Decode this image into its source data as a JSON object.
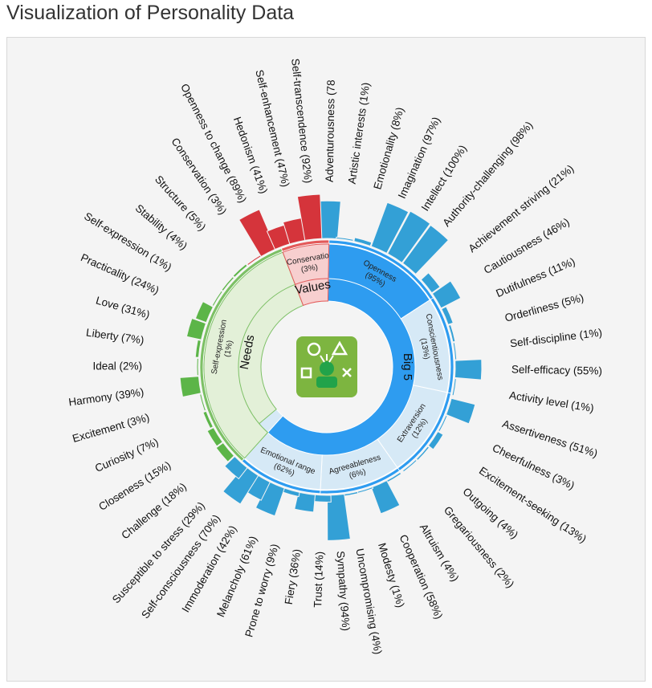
{
  "page": {
    "title": "Visualization of Personality Data"
  },
  "colors": {
    "big5_bar": "#33a0d6",
    "big5_main": "#2e9cf0",
    "big5_light": "#d6e9f6",
    "values_bar": "#d5343b",
    "values_main": "#e35a5a",
    "values_light": "#f7cfcf",
    "needs_bar": "#5cb548",
    "needs_main": "#7dc066",
    "needs_light": "#e3f0d8",
    "track": "#dce7f1",
    "badge": "#7db540"
  },
  "chart_data": {
    "type": "sunburst",
    "title": "Visualization of Personality Data",
    "center_icon": "personality-badge-icon",
    "top_level": [
      {
        "name": "Big 5",
        "color_key": "big5",
        "start_deg": 1,
        "end_deg": 222
      },
      {
        "name": "Needs",
        "color_key": "needs",
        "start_deg": 222,
        "end_deg": 339
      },
      {
        "name": "Values",
        "color_key": "values",
        "start_deg": 339,
        "end_deg": 361
      }
    ],
    "big5_inner": {
      "label": "Openness",
      "value_label": "(95%)",
      "start_deg": 1,
      "fill_end_deg": 302,
      "end_deg": 222
    },
    "needs_inner": {
      "label": "Self-expression",
      "value_label": "(1%)",
      "start_deg": 222,
      "end_deg": 339
    },
    "values_inner": {
      "label": "Conservatio",
      "value_label": "(3%)",
      "start_deg": 339,
      "end_deg": 361
    },
    "second_level": [
      {
        "name": "Openness",
        "pct": "(95%)",
        "start_deg": 1,
        "end_deg": 57,
        "color_key": "big5_main",
        "lines": [
          "Openness",
          "(95%)"
        ]
      },
      {
        "name": "Conscientiousness",
        "pct": "(13%)",
        "start_deg": 57,
        "end_deg": 102,
        "color_key": "big5_light",
        "lines": [
          "Conscientiousness",
          "(13%)"
        ]
      },
      {
        "name": "Extraversion",
        "pct": "(12%)",
        "start_deg": 102,
        "end_deg": 145,
        "color_key": "big5_light",
        "lines": [
          "Extraversion",
          "(12%)"
        ]
      },
      {
        "name": "Agreeableness",
        "pct": "(6%)",
        "start_deg": 145,
        "end_deg": 183,
        "color_key": "big5_light",
        "lines": [
          "Agreeableness",
          "(6%)"
        ]
      },
      {
        "name": "Emotional range",
        "pct": "(62%)",
        "start_deg": 183,
        "end_deg": 222,
        "color_key": "big5_light",
        "lines": [
          "Emotional range",
          "(62%)"
        ]
      },
      {
        "name": "Self-expression",
        "pct": "(1%)",
        "start_deg": 222,
        "end_deg": 339,
        "color_key": "needs_light",
        "lines": [
          "Self-expression",
          "(1%)"
        ]
      },
      {
        "name": "Conservatio",
        "pct": "(3%)",
        "start_deg": 339,
        "end_deg": 361,
        "color_key": "values_light",
        "lines": [
          "Conservatio",
          "(3%)"
        ]
      }
    ],
    "facets": [
      {
        "label": "Adventurousness (78",
        "value": 78,
        "angle": 1,
        "group": "big5",
        "side": "right"
      },
      {
        "label": "Artistic interests (1%)",
        "value": 1,
        "angle": 8,
        "group": "big5",
        "side": "right"
      },
      {
        "label": "Emotionality (8%)",
        "value": 8,
        "angle": 16,
        "group": "big5",
        "side": "right"
      },
      {
        "label": "Imagination (97%)",
        "value": 97,
        "angle": 24,
        "group": "big5",
        "side": "right"
      },
      {
        "label": "Intellect (100%)",
        "value": 100,
        "angle": 32,
        "group": "big5",
        "side": "right"
      },
      {
        "label": "Authority-challenging (98%)",
        "value": 98,
        "angle": 40,
        "group": "big5",
        "side": "right"
      },
      {
        "label": "Achievement striving (21%)",
        "value": 21,
        "angle": 51,
        "group": "big5",
        "side": "right"
      },
      {
        "label": "Cautiousness (46%)",
        "value": 46,
        "angle": 59,
        "group": "big5",
        "side": "right"
      },
      {
        "label": "Dutifulness (11%)",
        "value": 11,
        "angle": 67,
        "group": "big5",
        "side": "right"
      },
      {
        "label": "Orderliness (5%)",
        "value": 5,
        "angle": 75,
        "group": "big5",
        "side": "right"
      },
      {
        "label": "Self-discipline (1%)",
        "value": 1,
        "angle": 83,
        "group": "big5",
        "side": "right"
      },
      {
        "label": "Self-efficacy (55%)",
        "value": 55,
        "angle": 91,
        "group": "big5",
        "side": "right"
      },
      {
        "label": "Activity level (1%)",
        "value": 1,
        "angle": 99,
        "group": "big5",
        "side": "right"
      },
      {
        "label": "Assertiveness (51%)",
        "value": 51,
        "angle": 108,
        "group": "big5",
        "side": "right"
      },
      {
        "label": "Cheerfulness (3%)",
        "value": 3,
        "angle": 116,
        "group": "big5",
        "side": "right"
      },
      {
        "label": "Excitement-seeking (13%)",
        "value": 13,
        "angle": 124,
        "group": "big5",
        "side": "right"
      },
      {
        "label": "Outgoing (4%)",
        "value": 4,
        "angle": 132,
        "group": "big5",
        "side": "right"
      },
      {
        "label": "Gregariousness (2%)",
        "value": 2,
        "angle": 140,
        "group": "big5",
        "side": "right"
      },
      {
        "label": "Altruism (4%)",
        "value": 4,
        "angle": 149,
        "group": "big5",
        "side": "right"
      },
      {
        "label": "Cooperation (58%)",
        "value": 58,
        "angle": 156,
        "group": "big5",
        "side": "right"
      },
      {
        "label": "Modesty (1%)",
        "value": 1,
        "angle": 163,
        "group": "big5",
        "side": "right"
      },
      {
        "label": "Uncompromising (4%)",
        "value": 4,
        "angle": 170,
        "group": "big5",
        "side": "right"
      },
      {
        "label": "Sympathy (94%)",
        "value": 94,
        "angle": 176,
        "group": "big5",
        "side": "right"
      },
      {
        "label": "Trust (14%)",
        "value": 14,
        "angle": 182,
        "group": "big5",
        "side": "left"
      },
      {
        "label": "Fiery (36%)",
        "value": 36,
        "angle": 189,
        "group": "big5",
        "side": "left"
      },
      {
        "label": "Prone to worry (9%)",
        "value": 9,
        "angle": 196,
        "group": "big5",
        "side": "left"
      },
      {
        "label": "Melancholy (61%)",
        "value": 61,
        "angle": 203,
        "group": "big5",
        "side": "left"
      },
      {
        "label": "Immoderation (42%)",
        "value": 42,
        "angle": 210,
        "group": "big5",
        "side": "left"
      },
      {
        "label": "Self-consciousness (70%)",
        "value": 70,
        "angle": 216,
        "group": "big5",
        "side": "left"
      },
      {
        "label": "Susceptible to stress (29%)",
        "value": 29,
        "angle": 222,
        "group": "big5",
        "side": "left"
      },
      {
        "label": "Challenge (18%)",
        "value": 18,
        "angle": 230,
        "group": "needs",
        "side": "left"
      },
      {
        "label": "Closeness (15%)",
        "value": 15,
        "angle": 238,
        "group": "needs",
        "side": "left"
      },
      {
        "label": "Curiosity (7%)",
        "value": 7,
        "angle": 246,
        "group": "needs",
        "side": "left"
      },
      {
        "label": "Excitement (3%)",
        "value": 3,
        "angle": 254,
        "group": "needs",
        "side": "left"
      },
      {
        "label": "Harmony (39%)",
        "value": 39,
        "angle": 262,
        "group": "needs",
        "side": "left"
      },
      {
        "label": "Ideal (2%)",
        "value": 2,
        "angle": 270,
        "group": "needs",
        "side": "left"
      },
      {
        "label": "Liberty (7%)",
        "value": 7,
        "angle": 278,
        "group": "needs",
        "side": "left"
      },
      {
        "label": "Love (31%)",
        "value": 31,
        "angle": 286,
        "group": "needs",
        "side": "left"
      },
      {
        "label": "Practicality (24%)",
        "value": 24,
        "angle": 294,
        "group": "needs",
        "side": "left"
      },
      {
        "label": "Self-expression (1%)",
        "value": 1,
        "angle": 302,
        "group": "needs",
        "side": "left"
      },
      {
        "label": "Stability (4%)",
        "value": 4,
        "angle": 310,
        "group": "needs",
        "side": "left"
      },
      {
        "label": "Structure (5%)",
        "value": 5,
        "angle": 318,
        "group": "needs",
        "side": "left"
      },
      {
        "label": "Conservation (3%)",
        "value": 3,
        "angle": 326,
        "group": "values",
        "side": "left"
      },
      {
        "label": "Openness to change (89%)",
        "value": 89,
        "angle": 333,
        "group": "values",
        "side": "left"
      },
      {
        "label": "Hedonism (41%)",
        "value": 41,
        "angle": 340,
        "group": "values",
        "side": "left"
      },
      {
        "label": "Self-enhancement (47%)",
        "value": 47,
        "angle": 347,
        "group": "values",
        "side": "left"
      },
      {
        "label": "Self-transcendence (92%)",
        "value": 92,
        "angle": 354,
        "group": "values",
        "side": "left"
      }
    ]
  }
}
